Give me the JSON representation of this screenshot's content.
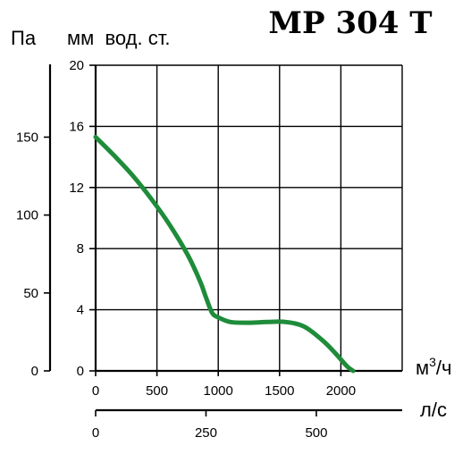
{
  "title": "MP 304 T",
  "unit_labels": {
    "pa": "Па",
    "mm": "мм  вод. ст.",
    "m3h": "м",
    "m3h_sup": "3",
    "m3h_tail": "/ч",
    "ls": "л/с"
  },
  "chart_data": {
    "type": "line",
    "title": "MP 304 T",
    "x_axes": [
      {
        "unit": "м3/ч",
        "range": [
          0,
          2500
        ],
        "ticks": [
          "0",
          "500",
          "1000",
          "1500",
          "2000"
        ],
        "tick_values": [
          0,
          500,
          1000,
          1500,
          2000
        ]
      },
      {
        "unit": "л/с",
        "range": [
          0,
          694.4
        ],
        "ticks": [
          "0",
          "250",
          "500"
        ],
        "tick_values": [
          0,
          250,
          500
        ]
      }
    ],
    "y_axes": [
      {
        "unit": "мм вод. ст.",
        "range": [
          0,
          20
        ],
        "ticks": [
          "0",
          "4",
          "8",
          "12",
          "16",
          "20"
        ],
        "tick_values": [
          0,
          4,
          8,
          12,
          16,
          20
        ]
      },
      {
        "unit": "Па",
        "ticks": [
          "0",
          "50",
          "100",
          "150"
        ],
        "tick_values": [
          0,
          50,
          100,
          150
        ]
      }
    ],
    "grid": true,
    "series": [
      {
        "color": "#1e8c3a",
        "x": [
          0,
          150,
          300,
          450,
          600,
          750,
          850,
          900,
          950,
          1000,
          1100,
          1250,
          1400,
          1550,
          1700,
          1850,
          1950,
          2050,
          2100
        ],
        "y": [
          15.3,
          14.1,
          12.8,
          11.3,
          9.6,
          7.6,
          5.9,
          4.8,
          3.8,
          3.5,
          3.2,
          3.15,
          3.2,
          3.2,
          2.9,
          2.0,
          1.2,
          0.3,
          0
        ]
      }
    ]
  }
}
